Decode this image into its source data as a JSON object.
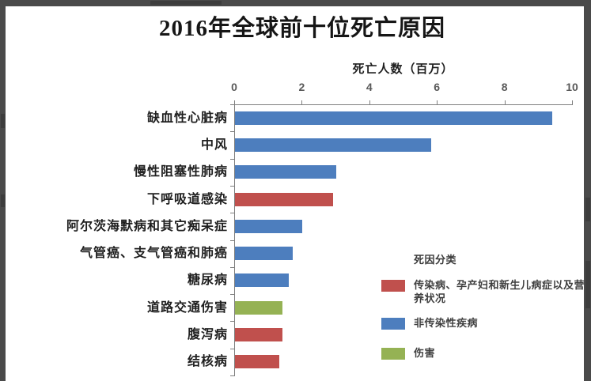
{
  "chart_data": {
    "type": "bar",
    "orientation": "horizontal",
    "title": "2016年全球前十位死亡原因",
    "xlabel": "死亡人数（百万）",
    "xlim": [
      0,
      10
    ],
    "xticks": [
      0,
      2,
      4,
      6,
      8,
      10
    ],
    "grid": false,
    "categories": [
      "缺血性心脏病",
      "中风",
      "慢性阻塞性肺病",
      "下呼吸道感染",
      "阿尔茨海默病和其它痴呆症",
      "气管癌、支气管癌和肺癌",
      "糖尿病",
      "道路交通伤害",
      "腹泻病",
      "结核病"
    ],
    "values": [
      9.4,
      5.8,
      3.0,
      2.9,
      2.0,
      1.7,
      1.6,
      1.4,
      1.4,
      1.3
    ],
    "bar_groups": [
      "ncd",
      "ncd",
      "ncd",
      "cmnn",
      "ncd",
      "ncd",
      "ncd",
      "injury",
      "cmnn",
      "cmnn"
    ],
    "group_colors": {
      "cmnn": "#C0504D",
      "ncd": "#4D7EBE",
      "injury": "#95B254"
    },
    "legend": {
      "title": "死因分类",
      "position": "right-bottom",
      "items": [
        {
          "label": "传染病、孕产妇和新生儿病症以及营养状况",
          "group": "cmnn",
          "color": "#C0504D"
        },
        {
          "label": "非传染性疾病",
          "group": "ncd",
          "color": "#4D7EBE"
        },
        {
          "label": "伤害",
          "group": "injury",
          "color": "#95B254"
        }
      ]
    }
  }
}
